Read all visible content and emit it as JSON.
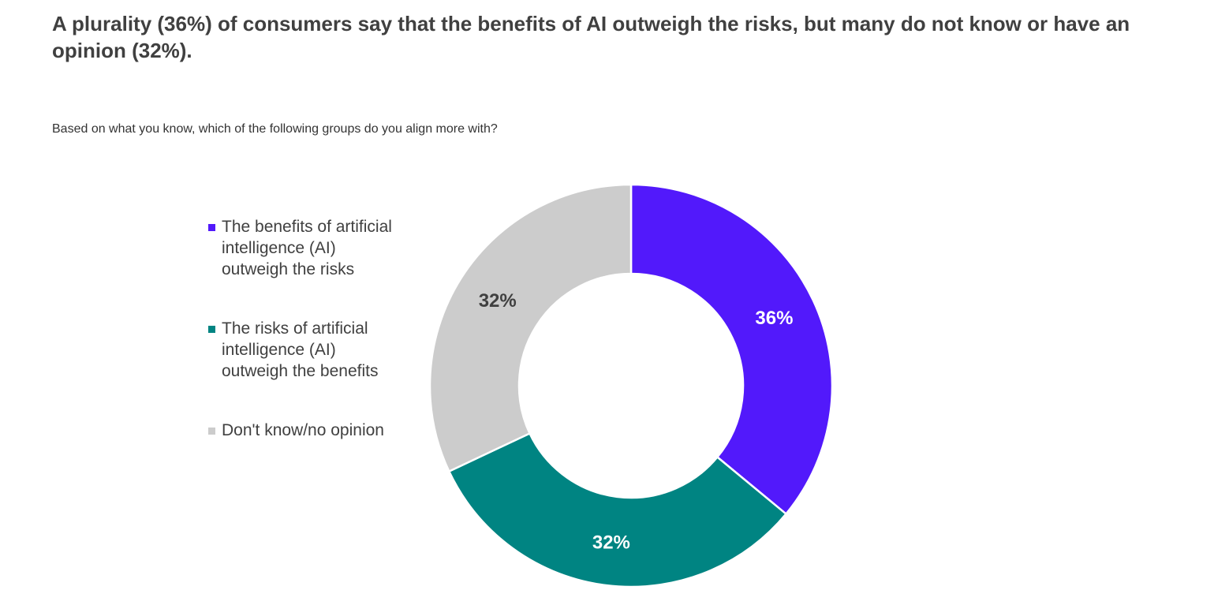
{
  "chart_data": {
    "type": "pie",
    "variant": "donut",
    "title": "A plurality (36%) of consumers say that the benefits of AI outweigh the risks, but many do not know or have an opinion (32%).",
    "subtitle": "Based on what you know, which of the following groups do you align more with?",
    "legend_position": "left",
    "slices": [
      {
        "name": "The benefits of artificial intelligence (AI) outweigh the risks",
        "value": 36,
        "label": "36%",
        "color": "#5219FB",
        "label_color": "#FFFFFF"
      },
      {
        "name": "The risks of artificial intelligence (AI) outweigh the benefits",
        "value": 32,
        "label": "32%",
        "color": "#008482",
        "label_color": "#FFFFFF"
      },
      {
        "name": "Don't know/no opinion",
        "value": 32,
        "label": "32%",
        "color": "#CCCCCC",
        "label_color": "#404040"
      }
    ]
  }
}
